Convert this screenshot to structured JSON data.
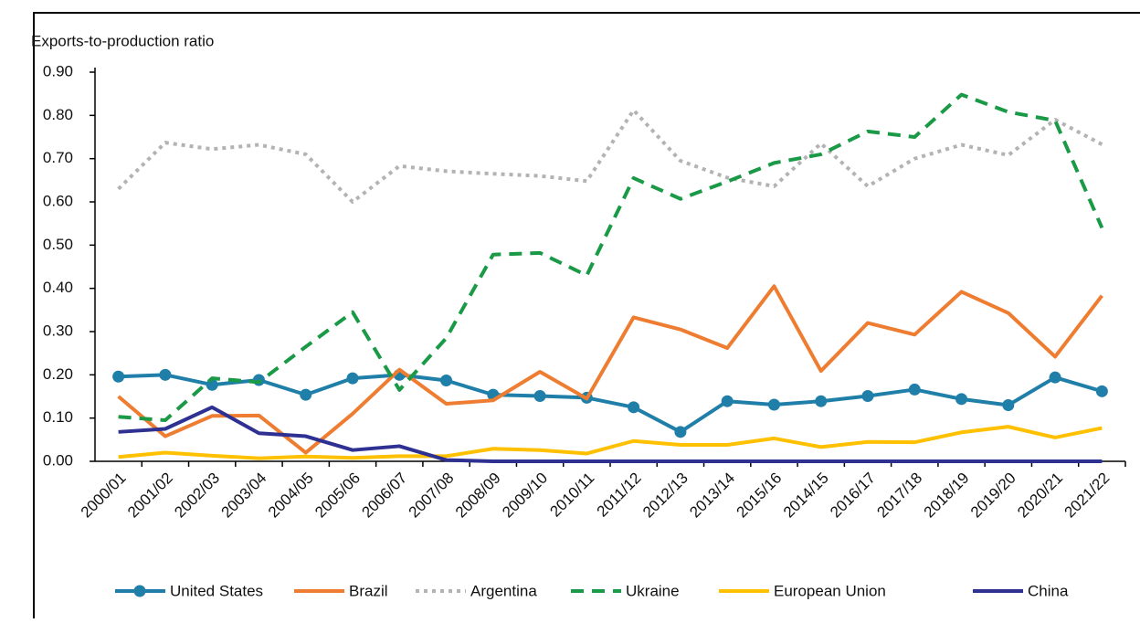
{
  "chart_data": {
    "type": "line",
    "y_label": "Exports-to-production ratio",
    "categories": [
      "2000/01",
      "2001/02",
      "2002/03",
      "2003/04",
      "2004/05",
      "2005/06",
      "2006/07",
      "2007/08",
      "2008/09",
      "2009/10",
      "2010/11",
      "2011/12",
      "2012/13",
      "2013/14",
      "2015/16",
      "2014/15",
      "2016/17",
      "2017/18",
      "2018/19",
      "2019/20",
      "2020/21",
      "2021/22"
    ],
    "series": [
      {
        "name": "United States",
        "color": "#1f7fa8",
        "dash": "solid",
        "marker": "circle",
        "values": [
          0.196,
          0.2,
          0.177,
          0.188,
          0.154,
          0.192,
          0.2,
          0.187,
          0.154,
          0.151,
          0.147,
          0.125,
          0.068,
          0.139,
          0.131,
          0.139,
          0.151,
          0.166,
          0.144,
          0.13,
          0.194,
          0.162
        ]
      },
      {
        "name": "Brazil",
        "color": "#ee7d31",
        "dash": "solid",
        "values": [
          0.15,
          0.058,
          0.105,
          0.106,
          0.02,
          0.11,
          0.212,
          0.133,
          0.141,
          0.207,
          0.145,
          0.333,
          0.305,
          0.262,
          0.405,
          0.209,
          0.32,
          0.293,
          0.392,
          0.343,
          0.242,
          0.383
        ]
      },
      {
        "name": "Argentina",
        "color": "#b3b3b3",
        "dash": "dot",
        "values": [
          0.63,
          0.737,
          0.722,
          0.732,
          0.71,
          0.6,
          0.683,
          0.671,
          0.665,
          0.66,
          0.648,
          0.812,
          0.695,
          0.656,
          0.636,
          0.735,
          0.636,
          0.7,
          0.732,
          0.708,
          0.79,
          0.733
        ]
      },
      {
        "name": "Ukraine",
        "color": "#1a9a46",
        "dash": "dash",
        "values": [
          0.103,
          0.095,
          0.192,
          0.183,
          0.265,
          0.345,
          0.165,
          0.285,
          0.478,
          0.482,
          0.43,
          0.655,
          0.607,
          0.647,
          0.69,
          0.71,
          0.763,
          0.75,
          0.848,
          0.808,
          0.788,
          0.54
        ]
      },
      {
        "name": "European Union",
        "color": "#ffc000",
        "dash": "solid",
        "values": [
          0.01,
          0.02,
          0.013,
          0.007,
          0.011,
          0.008,
          0.012,
          0.012,
          0.029,
          0.026,
          0.018,
          0.047,
          0.038,
          0.038,
          0.053,
          0.033,
          0.045,
          0.044,
          0.067,
          0.08,
          0.055,
          0.077
        ]
      },
      {
        "name": "China",
        "color": "#2e3192",
        "dash": "solid",
        "values": [
          0.068,
          0.075,
          0.125,
          0.065,
          0.058,
          0.026,
          0.035,
          0.003,
          0,
          0,
          0,
          0,
          0,
          0,
          0,
          0,
          0,
          0,
          0,
          0,
          0,
          0
        ]
      }
    ],
    "ylim": [
      0,
      0.9
    ],
    "yticks": [
      {
        "value": 0,
        "label": "0.00"
      },
      {
        "value": 0.1,
        "label": "0.10"
      },
      {
        "value": 0.2,
        "label": "0.20"
      },
      {
        "value": 0.3,
        "label": "0.30"
      },
      {
        "value": 0.4,
        "label": "0.40"
      },
      {
        "value": 0.5,
        "label": "0.50"
      },
      {
        "value": 0.6,
        "label": "0.60"
      },
      {
        "value": 0.7,
        "label": "0.70"
      },
      {
        "value": 0.8,
        "label": "0.80"
      },
      {
        "value": 0.9,
        "label": "0.90"
      }
    ],
    "legend": "bottom"
  }
}
